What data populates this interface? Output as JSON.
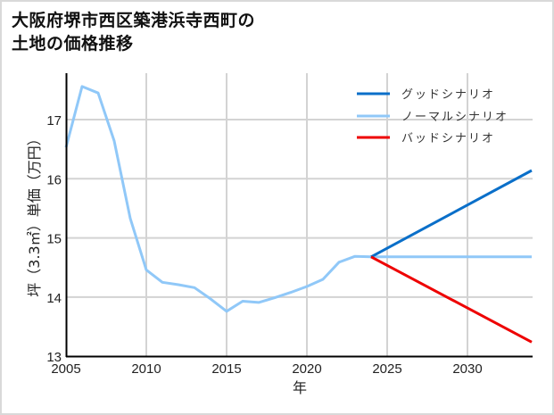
{
  "title": {
    "line1": "大阪府堺市西区築港浜寺西町の",
    "line2": "土地の価格推移"
  },
  "chart_data": {
    "type": "line",
    "title": "大阪府堺市西区築港浜寺西町の土地の価格推移",
    "xlabel": "年",
    "ylabel": "坪（3.3㎡）単価（万円）",
    "xlim": [
      2005,
      2034
    ],
    "ylim": [
      13,
      17.8
    ],
    "xticks": [
      2005,
      2010,
      2015,
      2020,
      2025,
      2030
    ],
    "yticks": [
      13,
      14,
      15,
      16,
      17
    ],
    "grid": true,
    "legend_position": "upper right",
    "series": [
      {
        "name": "グッドシナリオ",
        "color": "#0a6fc9",
        "x": [
          2024,
          2034
        ],
        "values": [
          14.68,
          16.14
        ]
      },
      {
        "name": "ノーマルシナリオ",
        "color": "#90c8f8",
        "x": [
          2005,
          2006,
          2007,
          2008,
          2009,
          2010,
          2011,
          2012,
          2013,
          2014,
          2015,
          2016,
          2017,
          2018,
          2019,
          2020,
          2021,
          2022,
          2023,
          2024,
          2034
        ],
        "values": [
          16.53,
          17.56,
          17.45,
          16.64,
          15.33,
          14.46,
          14.25,
          14.21,
          14.16,
          13.97,
          13.76,
          13.93,
          13.91,
          13.99,
          14.08,
          14.18,
          14.3,
          14.59,
          14.69,
          14.68,
          14.68
        ]
      },
      {
        "name": "バッドシナリオ",
        "color": "#ee0000",
        "x": [
          2024,
          2034
        ],
        "values": [
          14.68,
          13.24
        ]
      }
    ]
  },
  "legend": {
    "items": [
      {
        "label": "グッドシナリオ",
        "color": "#0a6fc9"
      },
      {
        "label": "ノーマルシナリオ",
        "color": "#90c8f8"
      },
      {
        "label": "バッドシナリオ",
        "color": "#ee0000"
      }
    ]
  },
  "axes": {
    "xlabel": "年",
    "ylabel": "坪（3.3㎡）単価（万円）",
    "xtick_labels": [
      "2005",
      "2010",
      "2015",
      "2020",
      "2025",
      "2030"
    ],
    "ytick_labels": [
      "13",
      "14",
      "15",
      "16",
      "17"
    ]
  },
  "colors": {
    "axis": "#000000",
    "grid": "#d3d3d3",
    "border": "#d9d9d9"
  }
}
